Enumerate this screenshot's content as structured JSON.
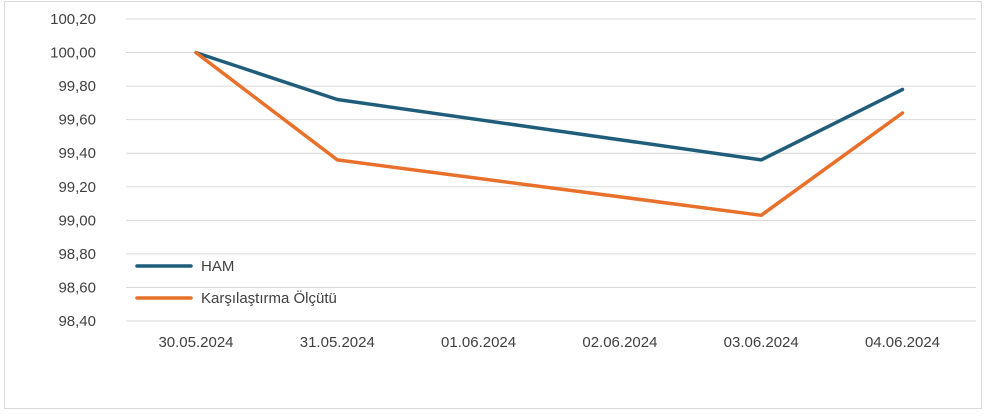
{
  "chart_data": {
    "type": "line",
    "title": "",
    "xlabel": "",
    "ylabel": "",
    "categories": [
      "30.05.2024",
      "31.05.2024",
      "01.06.2024",
      "02.06.2024",
      "03.06.2024",
      "04.06.2024"
    ],
    "ylim": [
      98.4,
      100.2
    ],
    "yticks": [
      "100,20",
      "100,00",
      "99,80",
      "99,60",
      "99,40",
      "99,20",
      "99,00",
      "98,80",
      "98,60",
      "98,40"
    ],
    "grid": true,
    "legend_position": "bottom-left",
    "series": [
      {
        "name": "HAM",
        "color": "#1f5d7a",
        "points": [
          {
            "x": 0,
            "y": 100.0
          },
          {
            "x": 1,
            "y": 99.72
          },
          {
            "x": 4,
            "y": 99.36
          },
          {
            "x": 5,
            "y": 99.78
          }
        ]
      },
      {
        "name": "Karşılaştırma Ölçütü",
        "color": "#e8702a",
        "points": [
          {
            "x": 0,
            "y": 100.0
          },
          {
            "x": 1,
            "y": 99.36
          },
          {
            "x": 4,
            "y": 99.03
          },
          {
            "x": 5,
            "y": 99.64
          }
        ]
      }
    ]
  }
}
